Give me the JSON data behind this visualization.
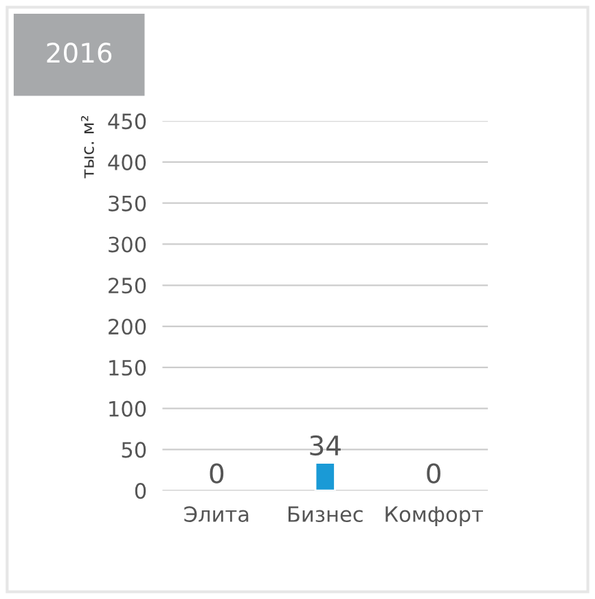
{
  "chart_data": {
    "type": "bar",
    "title": "2016",
    "ylabel": "тыс. м²",
    "categories": [
      "Элита",
      "Бизнес",
      "Комфорт"
    ],
    "values": [
      0,
      34,
      0
    ],
    "color": "#1a9ad6",
    "ylim": [
      0,
      450
    ],
    "yticks": [
      0,
      50,
      100,
      150,
      200,
      250,
      300,
      350,
      400,
      450
    ],
    "grid": "y",
    "data_labels": true,
    "legend": false
  }
}
